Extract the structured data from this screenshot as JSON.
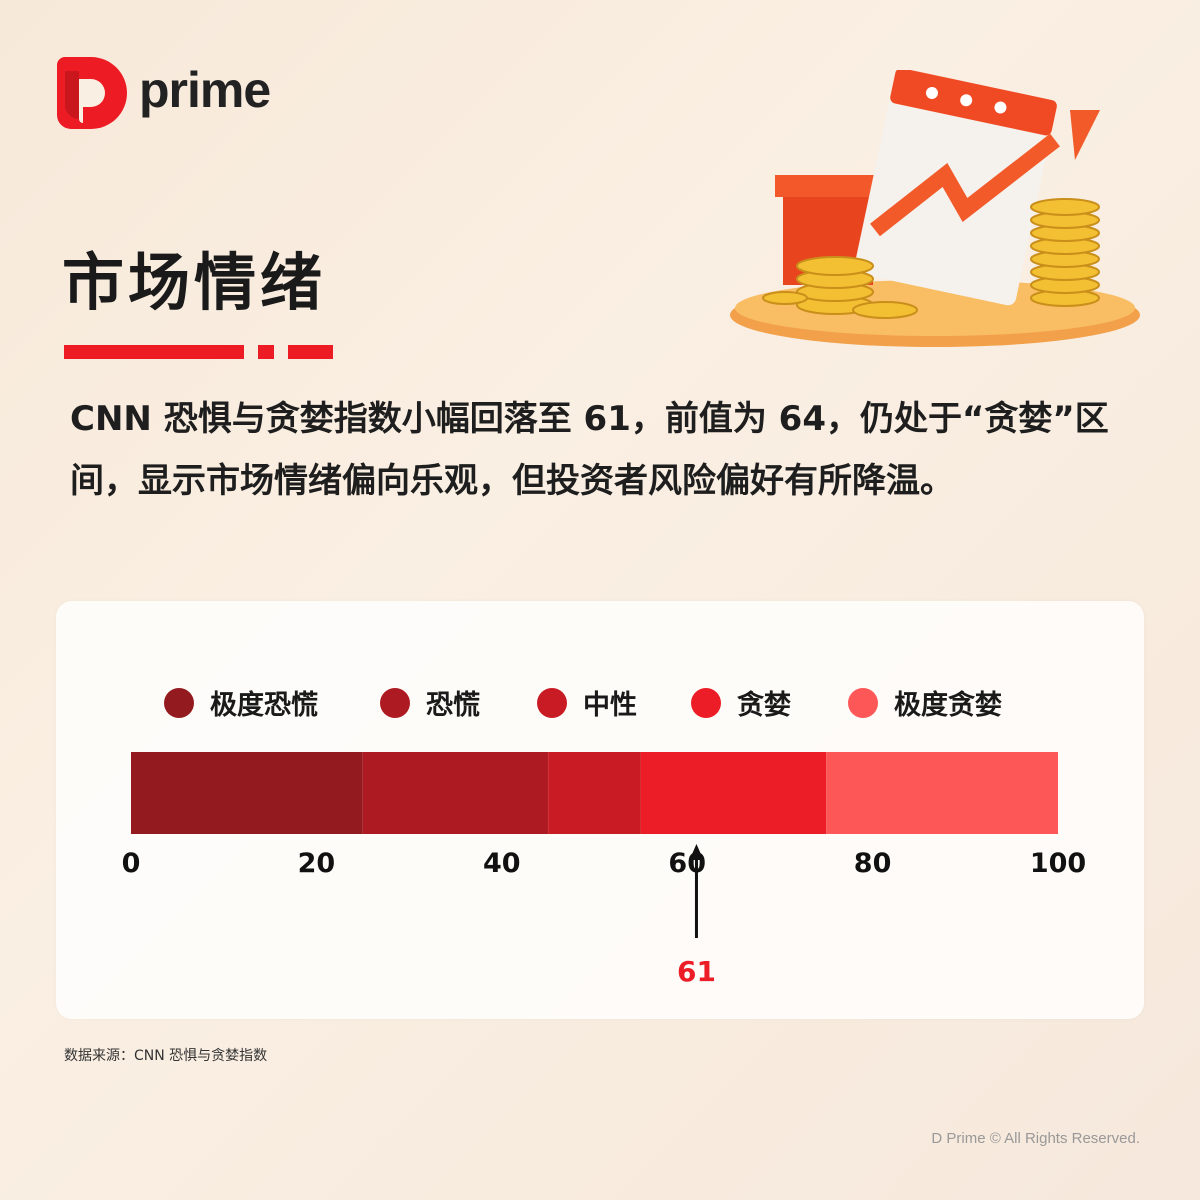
{
  "brand": {
    "logo_text": "prime",
    "logo_letter": "D",
    "color": "#ed1c24"
  },
  "title": "市场情绪",
  "description": "CNN 恐惧与贪婪指数小幅回落至 61，前值为 64，仍处于“贪婪”区间，显示市场情绪偏向乐观，但投资者风险偏好有所降温。",
  "chart_data": {
    "type": "bar",
    "orientation": "horizontal-segmented-gauge",
    "xlim": [
      0,
      100
    ],
    "ticks": [
      "0",
      "20",
      "40",
      "60",
      "80",
      "100"
    ],
    "segments": [
      {
        "name": "极度恐慌",
        "start": 0,
        "end": 25,
        "color": "#931a1f"
      },
      {
        "name": "恐慌",
        "start": 25,
        "end": 45,
        "color": "#ae1a22"
      },
      {
        "name": "中性",
        "start": 45,
        "end": 55,
        "color": "#c91b23"
      },
      {
        "name": "贪婪",
        "start": 55,
        "end": 75,
        "color": "#ec1d26"
      },
      {
        "name": "极度贪婪",
        "start": 75,
        "end": 100,
        "color": "#fd5757"
      }
    ],
    "indicator": {
      "value": 61,
      "label": "61",
      "color": "#ec1d26"
    },
    "legend_placement": "top"
  },
  "source": "数据来源：CNN 恐惧与贪婪指数",
  "copyright": "D Prime © All Rights Reserved."
}
